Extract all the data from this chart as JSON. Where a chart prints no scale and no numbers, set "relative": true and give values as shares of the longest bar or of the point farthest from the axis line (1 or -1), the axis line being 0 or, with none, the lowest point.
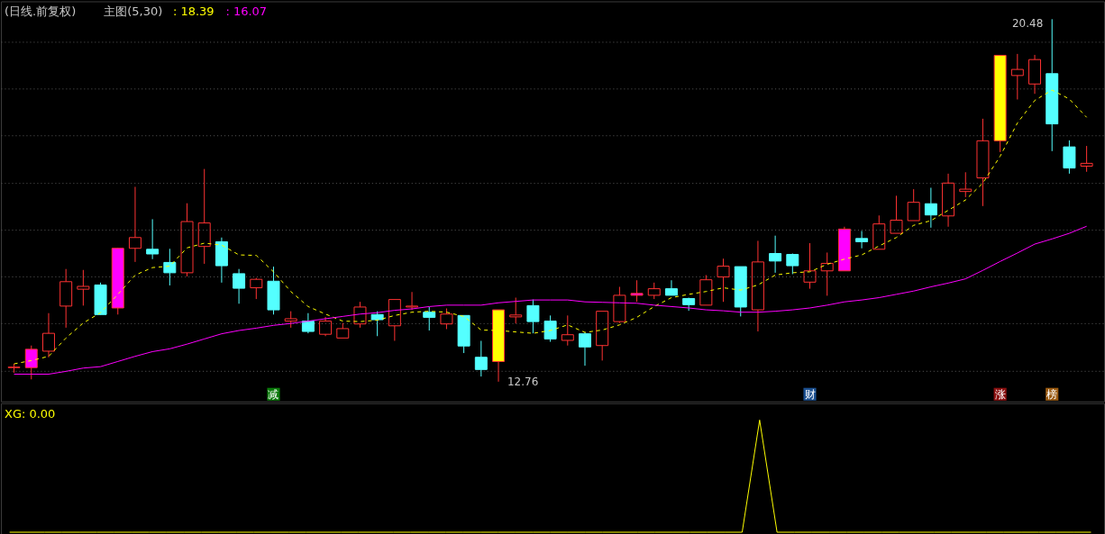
{
  "chart_data": [
    {
      "type": "candlestick",
      "title": "(日线.前复权)",
      "subtitle": "主图(5,30)",
      "categories": [
        null,
        null,
        null,
        null,
        null,
        null,
        null,
        null,
        null,
        null,
        null,
        null,
        null,
        null,
        null,
        null,
        null,
        null,
        null,
        null,
        null,
        null,
        null,
        null,
        null,
        null,
        null,
        null,
        null,
        null,
        null,
        null,
        null,
        null,
        null,
        null,
        null,
        null,
        null,
        null,
        null,
        null,
        null,
        null,
        null,
        null,
        null,
        null,
        null,
        null,
        null,
        null,
        null,
        null,
        null,
        null,
        null,
        null,
        null,
        null,
        null,
        null,
        null
      ],
      "ohlc": [
        [
          13.06,
          13.14,
          12.95,
          13.07
        ],
        [
          13.06,
          13.53,
          12.81,
          13.45
        ],
        [
          13.41,
          14.22,
          13.28,
          13.79
        ],
        [
          14.37,
          15.16,
          13.91,
          14.89
        ],
        [
          14.73,
          15.14,
          14.38,
          14.79
        ],
        [
          14.82,
          14.87,
          14.18,
          14.19
        ],
        [
          14.33,
          15.61,
          14.19,
          15.6
        ],
        [
          15.6,
          16.91,
          15.31,
          15.83
        ],
        [
          15.58,
          16.22,
          15.37,
          15.48
        ],
        [
          15.3,
          15.59,
          14.81,
          15.08
        ],
        [
          15.08,
          16.56,
          15.0,
          16.17
        ],
        [
          15.64,
          17.29,
          15.27,
          16.14
        ],
        [
          15.74,
          15.83,
          14.87,
          15.23
        ],
        [
          15.06,
          15.16,
          14.42,
          14.75
        ],
        [
          14.76,
          14.97,
          14.52,
          14.94
        ],
        [
          14.9,
          15.21,
          14.19,
          14.29
        ],
        [
          14.05,
          14.26,
          13.91,
          14.1
        ],
        [
          14.05,
          14.22,
          13.79,
          13.83
        ],
        [
          13.77,
          14.14,
          13.73,
          14.05
        ],
        [
          13.69,
          14.01,
          13.69,
          13.89
        ],
        [
          13.99,
          14.46,
          13.91,
          14.35
        ],
        [
          14.19,
          14.26,
          13.73,
          14.08
        ],
        [
          13.95,
          14.51,
          13.63,
          14.51
        ],
        [
          14.35,
          14.67,
          14.29,
          14.37
        ],
        [
          14.24,
          14.35,
          13.85,
          14.13
        ],
        [
          13.99,
          14.32,
          13.88,
          14.2
        ],
        [
          14.17,
          14.17,
          13.37,
          13.52
        ],
        [
          13.28,
          13.63,
          12.87,
          13.02
        ],
        [
          13.19,
          14.29,
          12.76,
          14.29
        ],
        [
          14.14,
          14.55,
          14.0,
          14.18
        ],
        [
          14.38,
          14.51,
          13.79,
          14.04
        ],
        [
          14.05,
          14.17,
          13.61,
          13.67
        ],
        [
          13.64,
          14.17,
          13.53,
          13.76
        ],
        [
          13.78,
          13.81,
          13.1,
          13.5
        ],
        [
          13.53,
          14.26,
          13.21,
          14.26
        ],
        [
          14.04,
          14.78,
          14.01,
          14.6
        ],
        [
          14.6,
          14.92,
          14.46,
          14.64
        ],
        [
          14.6,
          14.87,
          14.52,
          14.74
        ],
        [
          14.74,
          14.92,
          14.6,
          14.6
        ],
        [
          14.53,
          14.55,
          14.27,
          14.4
        ],
        [
          14.39,
          15.03,
          14.39,
          14.93
        ],
        [
          14.99,
          15.38,
          14.46,
          15.22
        ],
        [
          15.21,
          15.21,
          14.15,
          14.35
        ],
        [
          14.29,
          15.76,
          13.83,
          15.31
        ],
        [
          15.49,
          15.87,
          15.08,
          15.33
        ],
        [
          15.47,
          15.49,
          15.05,
          15.23
        ],
        [
          14.88,
          15.71,
          14.74,
          15.12
        ],
        [
          15.12,
          15.51,
          14.59,
          15.28
        ],
        [
          15.12,
          16.06,
          15.12,
          16.01
        ],
        [
          15.81,
          15.97,
          15.6,
          15.74
        ],
        [
          15.58,
          16.3,
          15.58,
          16.12
        ],
        [
          15.92,
          16.72,
          15.92,
          16.2
        ],
        [
          16.19,
          16.86,
          16.19,
          16.58
        ],
        [
          16.55,
          16.89,
          16.04,
          16.31
        ],
        [
          16.29,
          17.19,
          16.06,
          16.99
        ],
        [
          16.81,
          17.22,
          16.69,
          16.86
        ],
        [
          17.1,
          18.36,
          16.5,
          17.89
        ],
        [
          17.89,
          19.71,
          17.65,
          19.71
        ],
        [
          19.28,
          19.74,
          18.77,
          19.41
        ],
        [
          19.1,
          19.72,
          18.89,
          19.62
        ],
        [
          19.32,
          20.48,
          17.67,
          18.25
        ],
        [
          17.76,
          17.9,
          17.19,
          17.31
        ],
        [
          17.35,
          17.78,
          17.23,
          17.41
        ]
      ],
      "colors": [
        "#ff3232",
        "#ff00ff",
        "#ff3232",
        "#ff3232",
        "#ff3232",
        "#54ffff",
        "#ff00ff",
        "#ff3232",
        "#54ffff",
        "#54ffff",
        "#ff3232",
        "#ff3232",
        "#54ffff",
        "#54ffff",
        "#ff3232",
        "#54ffff",
        "#ff3232",
        "#54ffff",
        "#ff3232",
        "#ff3232",
        "#ff3232",
        "#54ffff",
        "#ff3232",
        "#ff3232",
        "#54ffff",
        "#ff3232",
        "#54ffff",
        "#54ffff",
        "#ffff00",
        "#ff3232",
        "#54ffff",
        "#54ffff",
        "#ff3232",
        "#54ffff",
        "#ff3232",
        "#ff3232",
        "#ff00ff",
        "#ff3232",
        "#54ffff",
        "#54ffff",
        "#ff3232",
        "#ff3232",
        "#54ffff",
        "#ff3232",
        "#54ffff",
        "#54ffff",
        "#ff3232",
        "#ff3232",
        "#ff00ff",
        "#54ffff",
        "#ff3232",
        "#ff3232",
        "#ff3232",
        "#54ffff",
        "#ff3232",
        "#ff3232",
        "#ff3232",
        "#ffff00",
        "#ff3232",
        "#ff3232",
        "#54ffff",
        "#54ffff",
        "#ff3232"
      ],
      "series": [
        {
          "name": ": 18.39",
          "type": "line",
          "color": "#ffff00",
          "line_style": "dashed",
          "values": [
            13.14,
            13.21,
            13.3,
            13.69,
            14.01,
            14.23,
            14.62,
            15.03,
            15.19,
            15.22,
            15.61,
            15.71,
            15.67,
            15.46,
            15.45,
            15.1,
            14.68,
            14.36,
            14.2,
            14.05,
            14.04,
            14.07,
            14.17,
            14.24,
            14.26,
            14.24,
            14.15,
            13.86,
            13.85,
            13.82,
            13.79,
            13.85,
            13.97,
            13.81,
            13.86,
            13.97,
            14.13,
            14.36,
            14.55,
            14.62,
            14.68,
            14.76,
            14.71,
            14.82,
            15.03,
            15.08,
            15.1,
            15.26,
            15.37,
            15.46,
            15.65,
            15.83,
            16.09,
            16.19,
            16.41,
            16.63,
            16.99,
            17.56,
            18.27,
            18.75,
            18.97,
            18.78,
            18.39
          ]
        },
        {
          "name": ": 16.07",
          "type": "line",
          "color": "#ff00ff",
          "line_style": "solid",
          "values": [
            12.92,
            12.92,
            12.92,
            12.98,
            13.05,
            13.08,
            13.19,
            13.3,
            13.4,
            13.46,
            13.56,
            13.67,
            13.78,
            13.85,
            13.9,
            13.96,
            14.0,
            14.05,
            14.1,
            14.15,
            14.2,
            14.23,
            14.28,
            14.31,
            14.36,
            14.39,
            14.39,
            14.39,
            14.44,
            14.47,
            14.5,
            14.5,
            14.5,
            14.46,
            14.45,
            14.44,
            14.43,
            14.39,
            14.36,
            14.33,
            14.29,
            14.27,
            14.24,
            14.24,
            14.26,
            14.29,
            14.33,
            14.39,
            14.46,
            14.5,
            14.55,
            14.62,
            14.69,
            14.78,
            14.86,
            14.95,
            15.13,
            15.32,
            15.5,
            15.69,
            15.8,
            15.92,
            16.07
          ]
        }
      ],
      "ylim": [
        12.34,
        20.86
      ],
      "yticks": [
        {
          "value": 13,
          "label": null
        },
        {
          "value": 14,
          "label": null
        },
        {
          "value": 15,
          "label": null
        },
        {
          "value": 16,
          "label": null
        },
        {
          "value": 17,
          "label": null
        },
        {
          "value": 18,
          "label": null
        },
        {
          "value": 19,
          "label": null
        },
        {
          "value": 20,
          "label": null
        }
      ],
      "grid": "y",
      "tick_labels": false,
      "legend": "top left",
      "annotations": [
        "20.48",
        "12.76",
        "减",
        "财",
        "涨",
        "榜"
      ]
    },
    {
      "type": "line",
      "relative": true,
      "categories": [
        null,
        null,
        null,
        null,
        null,
        null,
        null,
        null,
        null,
        null,
        null,
        null,
        null,
        null,
        null,
        null,
        null,
        null,
        null,
        null,
        null,
        null,
        null,
        null,
        null,
        null,
        null,
        null,
        null,
        null,
        null,
        null,
        null,
        null,
        null,
        null,
        null,
        null,
        null,
        null,
        null,
        null,
        null,
        null,
        null,
        null,
        null,
        null,
        null,
        null,
        null,
        null,
        null,
        null,
        null,
        null,
        null,
        null,
        null,
        null,
        null,
        null,
        null
      ],
      "series": [
        {
          "name": "XG: 0.00",
          "color": "#ffff00",
          "line_style": "solid",
          "values": [
            0,
            0,
            0,
            0,
            0,
            0,
            0,
            0,
            0,
            0,
            0,
            0,
            0,
            0,
            0,
            0,
            0,
            0,
            0,
            0,
            0,
            0,
            0,
            0,
            0,
            0,
            0,
            0,
            0,
            0,
            0,
            0,
            0,
            0,
            0,
            0,
            0,
            0,
            0,
            0,
            0,
            0,
            0,
            1,
            0,
            0,
            0,
            0,
            0,
            0,
            0,
            0,
            0,
            0,
            0,
            0,
            0,
            0,
            0,
            0,
            0,
            0,
            0
          ]
        }
      ],
      "legend": "top left",
      "tick_labels": false
    }
  ]
}
